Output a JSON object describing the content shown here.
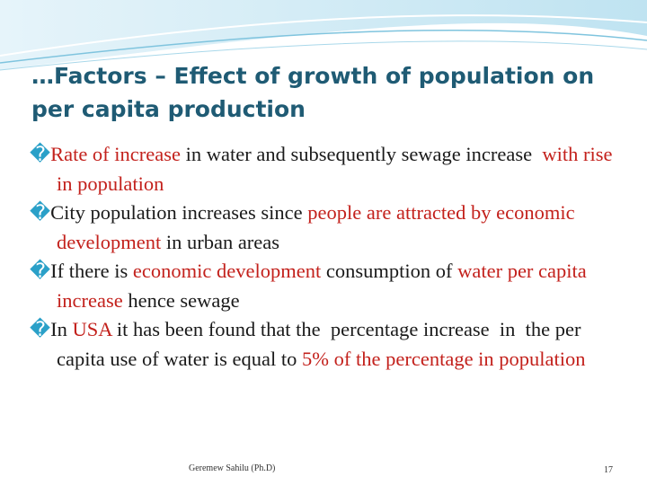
{
  "title": "…Factors – Effect of growth of population on per capita production",
  "bullets": [
    {
      "marker": "�",
      "segments": [
        {
          "text": "Rate of increase",
          "color": "#c3211c"
        },
        {
          "text": " in water and subsequently sewage increase  ",
          "color": "#1a1a1a"
        },
        {
          "text": "with rise in population",
          "color": "#c3211c"
        }
      ]
    },
    {
      "marker": "�",
      "segments": [
        {
          "text": "City population increases since ",
          "color": "#1a1a1a"
        },
        {
          "text": "people are attracted by economic development",
          "color": "#c3211c"
        },
        {
          "text": " in urban areas",
          "color": "#1a1a1a"
        }
      ]
    },
    {
      "marker": "�",
      "segments": [
        {
          "text": "If there is ",
          "color": "#1a1a1a"
        },
        {
          "text": "economic development",
          "color": "#c3211c"
        },
        {
          "text": " consumption of ",
          "color": "#1a1a1a"
        },
        {
          "text": "water per capita increase",
          "color": "#c3211c"
        },
        {
          "text": " hence sewage",
          "color": "#1a1a1a"
        }
      ]
    },
    {
      "marker": "�",
      "segments": [
        {
          "text": "In ",
          "color": "#1a1a1a"
        },
        {
          "text": "USA",
          "color": "#c3211c"
        },
        {
          "text": " it has been found that the  percentage increase  in  the per capita use of water is equal to ",
          "color": "#1a1a1a"
        },
        {
          "text": "5% of the percentage in population",
          "color": "#c3211c"
        }
      ]
    }
  ],
  "footer": {
    "author": "Geremew Sahilu (Ph.D)",
    "page": "17"
  }
}
